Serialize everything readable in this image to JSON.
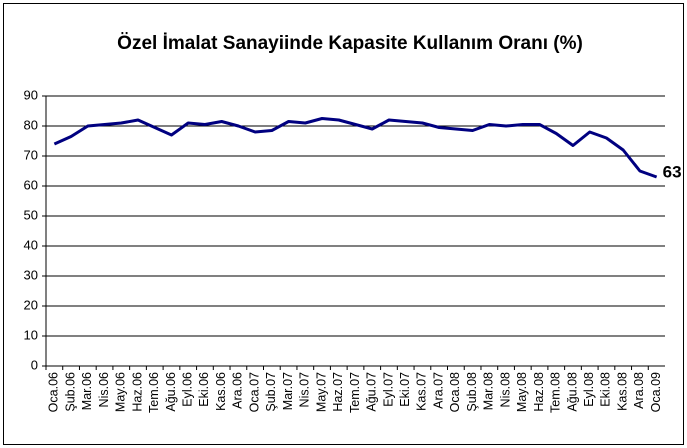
{
  "chart_data": {
    "type": "line",
    "title": "Özel İmalat Sanayiinde Kapasite Kullanım Oranı (%)",
    "categories": [
      "Oca.06",
      "Şub.06",
      "Mar.06",
      "Nis.06",
      "May.06",
      "Haz.06",
      "Tem.06",
      "Ağu.06",
      "Eyl.06",
      "Eki.06",
      "Kas.06",
      "Ara.06",
      "Oca.07",
      "Şub.07",
      "Mar.07",
      "Nis.07",
      "May.07",
      "Haz.07",
      "Tem.07",
      "Ağu.07",
      "Eyl.07",
      "Eki.07",
      "Kas.07",
      "Ara.07",
      "Oca.08",
      "Şub.08",
      "Mar.08",
      "Nis.08",
      "May.08",
      "Haz.08",
      "Tem.08",
      "Ağu.08",
      "Eyl.08",
      "Eki.08",
      "Kas.08",
      "Ara.08",
      "Oca.09"
    ],
    "series": [
      {
        "name": "Kapasite Kullanım Oranı",
        "color": "#000080",
        "values": [
          74,
          76.5,
          80,
          80.5,
          81,
          82,
          79.5,
          77,
          81,
          80.5,
          81.5,
          80,
          78,
          78.5,
          81.5,
          81,
          82.5,
          82,
          80.5,
          79,
          82,
          81.5,
          81,
          79.5,
          79,
          78.5,
          80.5,
          80,
          80.5,
          80.5,
          77.5,
          73.5,
          78,
          76,
          72,
          65,
          63
        ]
      }
    ],
    "ylim": [
      0,
      90
    ],
    "yticks": [
      0,
      10,
      20,
      30,
      40,
      50,
      60,
      70,
      80,
      90
    ],
    "grid": true
  }
}
